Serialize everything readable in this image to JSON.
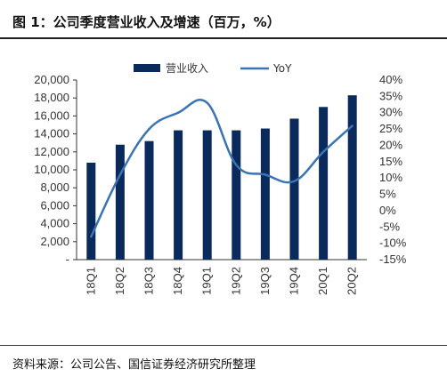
{
  "header": {
    "title": "图 1：公司季度营业收入及增速（百万，%）"
  },
  "footer": {
    "source": "资料来源：公司公告、国信证券经济研究所整理"
  },
  "colors": {
    "bar": "#0b2a5c",
    "line": "#3a74b3",
    "axis": "#333333"
  },
  "chart_data": {
    "type": "bar",
    "title": "",
    "categories": [
      "18Q1",
      "18Q2",
      "18Q3",
      "18Q4",
      "19Q1",
      "19Q2",
      "19Q3",
      "19Q4",
      "20Q1",
      "20Q2"
    ],
    "series": [
      {
        "name": "营业收入",
        "type": "bar",
        "axis": "left",
        "values": [
          10800,
          12800,
          13200,
          14400,
          14400,
          14400,
          14600,
          15700,
          17000,
          18300
        ]
      },
      {
        "name": "YoY",
        "type": "line",
        "axis": "right",
        "values": [
          -8,
          11,
          25,
          30,
          33,
          14,
          11,
          9,
          18,
          26
        ]
      }
    ],
    "y_left": {
      "min": 0,
      "max": 20000,
      "step": 2000,
      "tick_labels": [
        "-",
        "2,000",
        "4,000",
        "6,000",
        "8,000",
        "10,000",
        "12,000",
        "14,000",
        "16,000",
        "18,000",
        "20,000"
      ]
    },
    "y_right": {
      "min": -15,
      "max": 40,
      "step": 5,
      "tick_labels": [
        "-15%",
        "-10%",
        "-5%",
        "0%",
        "5%",
        "10%",
        "15%",
        "20%",
        "25%",
        "30%",
        "35%",
        "40%"
      ]
    },
    "legend_position": "top-center",
    "grid": false
  }
}
